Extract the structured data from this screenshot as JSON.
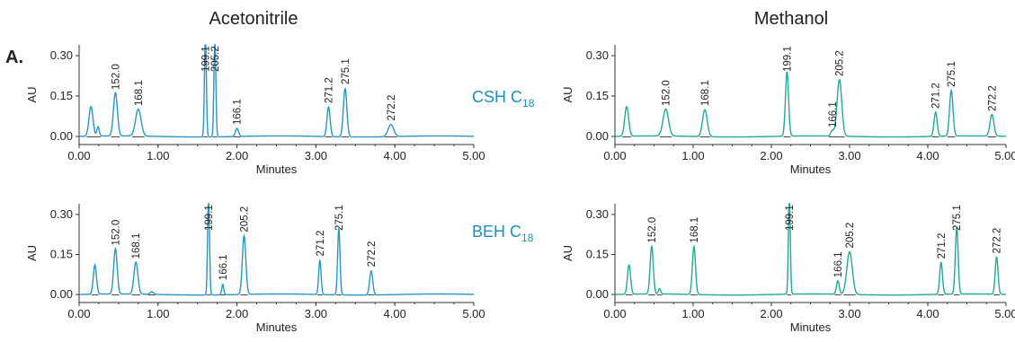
{
  "figure": {
    "panel_label": "A.",
    "solvent_titles": [
      "Acetonitrile",
      "Methanol"
    ],
    "column_labels": [
      {
        "main": "CSH C",
        "sub": "18"
      },
      {
        "main": "BEH C",
        "sub": "18"
      }
    ],
    "colors": {
      "acetonitrile_trace": "#2a95c7",
      "methanol_trace": "#22a89a",
      "baseline_marks": "#333333",
      "column_label": "#1a8fbf"
    }
  },
  "chart_data": [
    {
      "type": "line",
      "solvent": "Acetonitrile",
      "column": "CSH C18",
      "xlabel": "Minutes",
      "ylabel": "AU",
      "xlim": [
        0,
        5
      ],
      "ylim": [
        -0.03,
        0.34
      ],
      "xticks": [
        "0.00",
        "1.00",
        "2.00",
        "3.00",
        "4.00",
        "5.00"
      ],
      "yticks": [
        "0.00",
        "0.15",
        "0.30"
      ],
      "grid": false,
      "peaks": [
        {
          "label": "",
          "x": 0.15,
          "height": 0.11,
          "width": 0.025
        },
        {
          "label": "",
          "x": 0.24,
          "height": 0.035,
          "width": 0.015
        },
        {
          "label": "152.0",
          "x": 0.46,
          "height": 0.16,
          "width": 0.025
        },
        {
          "label": "168.1",
          "x": 0.75,
          "height": 0.1,
          "width": 0.035
        },
        {
          "label": "199.1",
          "x": 1.6,
          "height": 0.38,
          "width": 0.012
        },
        {
          "label": "205.2",
          "x": 1.72,
          "height": 0.38,
          "width": 0.012
        },
        {
          "label": "166.1",
          "x": 2.0,
          "height": 0.03,
          "width": 0.02
        },
        {
          "label": "271.2",
          "x": 3.16,
          "height": 0.11,
          "width": 0.02
        },
        {
          "label": "275.1",
          "x": 3.37,
          "height": 0.18,
          "width": 0.022
        },
        {
          "label": "272.2",
          "x": 3.95,
          "height": 0.045,
          "width": 0.035
        }
      ]
    },
    {
      "type": "line",
      "solvent": "Methanol",
      "column": "CSH C18",
      "xlabel": "Minutes",
      "ylabel": "AU",
      "xlim": [
        0,
        5
      ],
      "ylim": [
        -0.03,
        0.34
      ],
      "xticks": [
        "0.00",
        "1.00",
        "2.00",
        "3.00",
        "4.00",
        "5.00"
      ],
      "yticks": [
        "0.00",
        "0.15",
        "0.30"
      ],
      "grid": false,
      "peaks": [
        {
          "label": "",
          "x": 0.15,
          "height": 0.11,
          "width": 0.025
        },
        {
          "label": "152.0",
          "x": 0.65,
          "height": 0.1,
          "width": 0.035
        },
        {
          "label": "168.1",
          "x": 1.15,
          "height": 0.1,
          "width": 0.03
        },
        {
          "label": "199.1",
          "x": 2.2,
          "height": 0.24,
          "width": 0.02
        },
        {
          "label": "166.1",
          "x": 2.78,
          "height": 0.02,
          "width": 0.02
        },
        {
          "label": "205.2",
          "x": 2.87,
          "height": 0.21,
          "width": 0.03
        },
        {
          "label": "271.2",
          "x": 4.1,
          "height": 0.09,
          "width": 0.02
        },
        {
          "label": "275.1",
          "x": 4.3,
          "height": 0.17,
          "width": 0.022
        },
        {
          "label": "272.2",
          "x": 4.82,
          "height": 0.08,
          "width": 0.025
        }
      ]
    },
    {
      "type": "line",
      "solvent": "Acetonitrile",
      "column": "BEH C18",
      "xlabel": "Minutes",
      "ylabel": "AU",
      "xlim": [
        0,
        5
      ],
      "ylim": [
        -0.03,
        0.34
      ],
      "xticks": [
        "0.00",
        "1.00",
        "2.00",
        "3.00",
        "4.00",
        "5.00"
      ],
      "yticks": [
        "0.00",
        "0.15",
        "0.30"
      ],
      "grid": false,
      "peaks": [
        {
          "label": "",
          "x": 0.2,
          "height": 0.11,
          "width": 0.02
        },
        {
          "label": "152.0",
          "x": 0.46,
          "height": 0.17,
          "width": 0.022
        },
        {
          "label": "168.1",
          "x": 0.72,
          "height": 0.12,
          "width": 0.025
        },
        {
          "label": "",
          "x": 0.92,
          "height": 0.01,
          "width": 0.02
        },
        {
          "label": "199.1",
          "x": 1.64,
          "height": 0.38,
          "width": 0.012
        },
        {
          "label": "166.1",
          "x": 1.82,
          "height": 0.04,
          "width": 0.012
        },
        {
          "label": "205.2",
          "x": 2.09,
          "height": 0.22,
          "width": 0.022
        },
        {
          "label": "271.2",
          "x": 3.05,
          "height": 0.13,
          "width": 0.015
        },
        {
          "label": "275.1",
          "x": 3.29,
          "height": 0.25,
          "width": 0.015
        },
        {
          "label": "272.2",
          "x": 3.7,
          "height": 0.09,
          "width": 0.02
        }
      ]
    },
    {
      "type": "line",
      "solvent": "Methanol",
      "column": "BEH C18",
      "xlabel": "Minutes",
      "ylabel": "AU",
      "xlim": [
        0,
        5
      ],
      "ylim": [
        -0.03,
        0.34
      ],
      "xticks": [
        "0.00",
        "1.00",
        "2.00",
        "3.00",
        "4.00",
        "5.00"
      ],
      "yticks": [
        "0.00",
        "0.15",
        "0.30"
      ],
      "grid": false,
      "peaks": [
        {
          "label": "",
          "x": 0.18,
          "height": 0.11,
          "width": 0.02
        },
        {
          "label": "152.0",
          "x": 0.47,
          "height": 0.18,
          "width": 0.02
        },
        {
          "label": "",
          "x": 0.57,
          "height": 0.02,
          "width": 0.015
        },
        {
          "label": "168.1",
          "x": 1.01,
          "height": 0.18,
          "width": 0.02
        },
        {
          "label": "199.1",
          "x": 2.23,
          "height": 0.38,
          "width": 0.012
        },
        {
          "label": "166.1",
          "x": 2.85,
          "height": 0.05,
          "width": 0.018
        },
        {
          "label": "205.2",
          "x": 3.0,
          "height": 0.16,
          "width": 0.035
        },
        {
          "label": "271.2",
          "x": 4.17,
          "height": 0.12,
          "width": 0.018
        },
        {
          "label": "275.1",
          "x": 4.37,
          "height": 0.25,
          "width": 0.018
        },
        {
          "label": "272.2",
          "x": 4.88,
          "height": 0.14,
          "width": 0.018
        }
      ]
    }
  ]
}
